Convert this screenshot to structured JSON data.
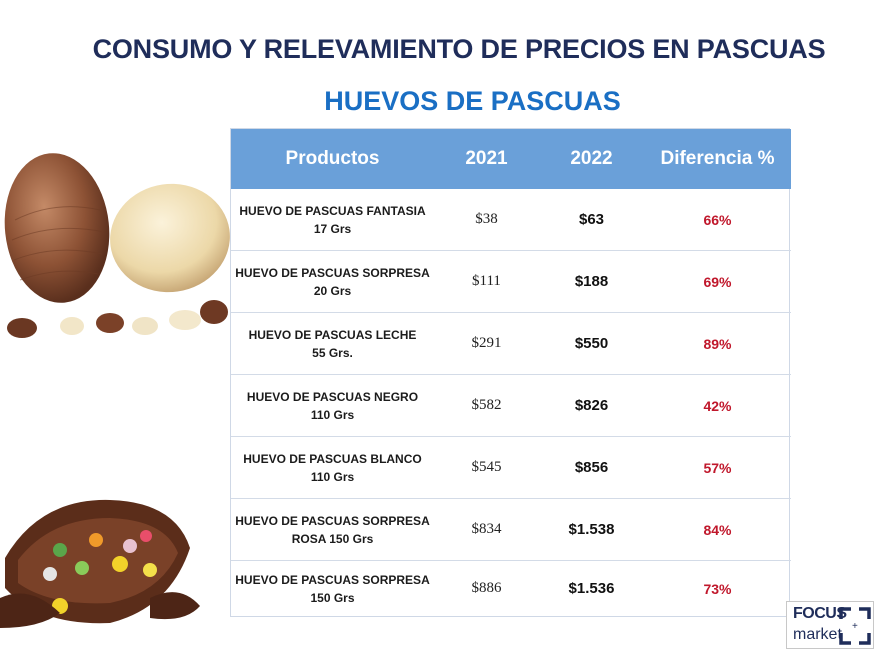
{
  "header": {
    "title": "CONSUMO Y RELEVAMIENTO DE PRECIOS EN PASCUAS",
    "subtitle": "HUEVOS DE PASCUAS"
  },
  "table": {
    "columns": [
      "Productos",
      "2021",
      "2022",
      "Diferencia %"
    ],
    "rows": [
      {
        "product_line1": "HUEVO DE PASCUAS FANTASIA",
        "product_line2": "17 Grs",
        "y2021": "$38",
        "y2022": "$63",
        "diff": "66%"
      },
      {
        "product_line1": "HUEVO DE PASCUAS SORPRESA",
        "product_line2": "20 Grs",
        "y2021": "$111",
        "y2022": "$188",
        "diff": "69%"
      },
      {
        "product_line1": "HUEVO DE PASCUAS LECHE",
        "product_line2": "55 Grs.",
        "y2021": "$291",
        "y2022": "$550",
        "diff": "89%"
      },
      {
        "product_line1": "HUEVO DE PASCUAS NEGRO",
        "product_line2": "110 Grs",
        "y2021": "$582",
        "y2022": "$826",
        "diff": "42%"
      },
      {
        "product_line1": "HUEVO DE PASCUAS BLANCO",
        "product_line2": "110 Grs",
        "y2021": "$545",
        "y2022": "$856",
        "diff": "57%"
      },
      {
        "product_line1": "HUEVO DE PASCUAS SORPRESA",
        "product_line2": "ROSA  150 Grs",
        "y2021": "$834",
        "y2022": "$1.538",
        "diff": "84%"
      },
      {
        "product_line1": "HUEVO DE PASCUAS SORPRESA",
        "product_line2": "150 Grs",
        "y2021": "$886",
        "y2022": "$1.536",
        "diff": "73%"
      }
    ]
  },
  "logo": {
    "line1": "FOCUS",
    "line2": "market",
    "plus": "+"
  },
  "colors": {
    "title": "#1f2d5a",
    "subtitle": "#1a6fc4",
    "table_header": "#6aa0d9",
    "diff_text": "#c0172b"
  }
}
